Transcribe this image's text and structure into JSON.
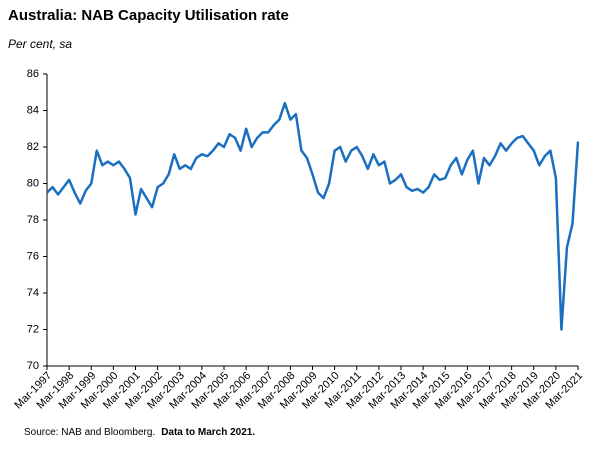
{
  "chart_data": {
    "type": "line",
    "title": "Australia: NAB Capacity Utilisation rate",
    "subtitle": "Per cent, sa",
    "source": "Source: NAB and Bloomberg.",
    "source_note": "Data to March 2021.",
    "categories": [
      "Mar-1997",
      null,
      null,
      null,
      "Mar-1998",
      null,
      null,
      null,
      "Mar-1999",
      null,
      null,
      null,
      "Mar-2000",
      null,
      null,
      null,
      "Mar-2001",
      null,
      null,
      null,
      "Mar-2002",
      null,
      null,
      null,
      "Mar-2003",
      null,
      null,
      null,
      "Mar-2004",
      null,
      null,
      null,
      "Mar-2005",
      null,
      null,
      null,
      "Mar-2006",
      null,
      null,
      null,
      "Mar-2007",
      null,
      null,
      null,
      "Mar-2008",
      null,
      null,
      null,
      "Mar-2009",
      null,
      null,
      null,
      "Mar-2010",
      null,
      null,
      null,
      "Mar-2011",
      null,
      null,
      null,
      "Mar-2012",
      null,
      null,
      null,
      "Mar-2013",
      null,
      null,
      null,
      "Mar-2014",
      null,
      null,
      null,
      "Mar-2015",
      null,
      null,
      null,
      "Mar-2016",
      null,
      null,
      null,
      "Mar-2017",
      null,
      null,
      null,
      "Mar-2018",
      null,
      null,
      null,
      "Mar-2019",
      null,
      null,
      null,
      "Mar-2020",
      null,
      null,
      null,
      "Mar-2021"
    ],
    "values": [
      79.5,
      79.8,
      79.4,
      79.8,
      80.2,
      79.5,
      78.9,
      79.6,
      80.0,
      81.8,
      81.0,
      81.2,
      81.0,
      81.2,
      80.8,
      80.3,
      78.3,
      79.7,
      79.2,
      78.7,
      79.8,
      80.0,
      80.5,
      81.6,
      80.8,
      81.0,
      80.8,
      81.4,
      81.6,
      81.5,
      81.8,
      82.2,
      82.0,
      82.7,
      82.5,
      81.8,
      83.0,
      82.0,
      82.5,
      82.8,
      82.8,
      83.2,
      83.5,
      84.4,
      83.5,
      83.8,
      81.8,
      81.4,
      80.5,
      79.5,
      79.2,
      80.0,
      81.8,
      82.0,
      81.2,
      81.8,
      82.0,
      81.5,
      80.8,
      81.6,
      81.0,
      81.2,
      80.0,
      80.2,
      80.5,
      79.8,
      79.6,
      79.7,
      79.5,
      79.8,
      80.5,
      80.2,
      80.3,
      81.0,
      81.4,
      80.5,
      81.3,
      81.8,
      80.0,
      81.4,
      81.0,
      81.5,
      82.2,
      81.8,
      82.2,
      82.5,
      82.6,
      82.2,
      81.8,
      81.0,
      81.5,
      81.8,
      80.3,
      72.0,
      76.5,
      77.8,
      82.3
    ],
    "color": "#1a6fc1",
    "ylim": [
      70,
      86
    ],
    "yticks": [
      70,
      72,
      74,
      76,
      78,
      80,
      82,
      84,
      86
    ]
  }
}
